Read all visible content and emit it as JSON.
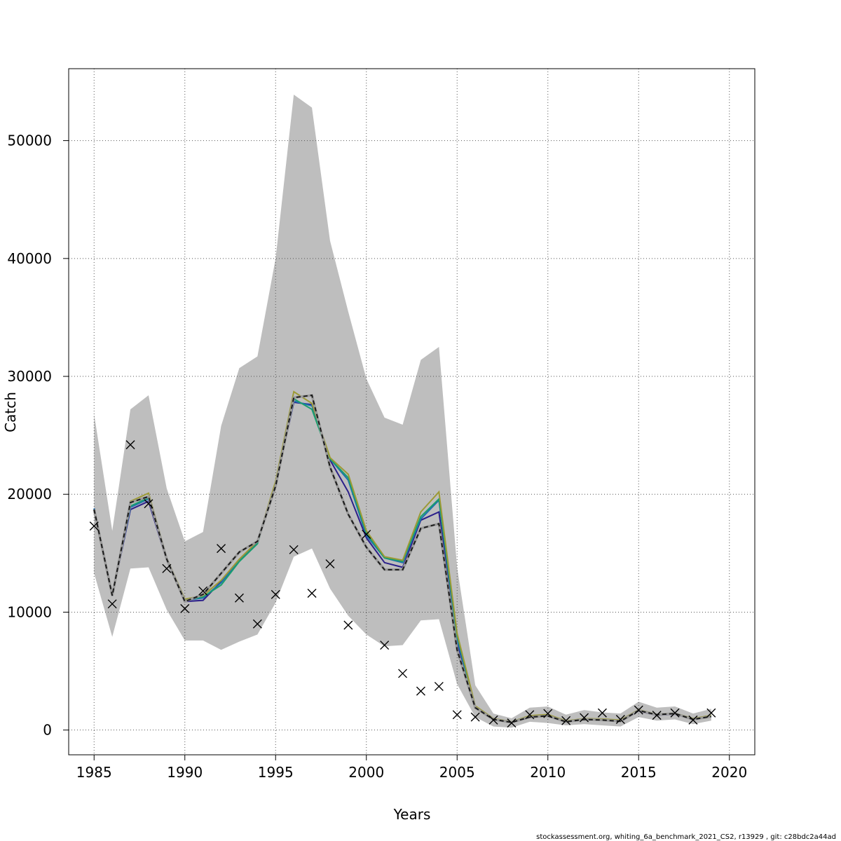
{
  "footer": "stockassessment.org, whiting_6a_benchmark_2021_CS2, r13929 , git: c28bdc2a44ad",
  "chart_data": {
    "type": "line",
    "xlabel": "Years",
    "ylabel": "Catch",
    "xlim": [
      1983.6,
      2021.4
    ],
    "ylim": [
      -2100,
      56100
    ],
    "xticks": [
      1985,
      1990,
      1995,
      2000,
      2005,
      2010,
      2015,
      2020
    ],
    "yticks": [
      0,
      10000,
      20000,
      30000,
      40000,
      50000
    ],
    "grid": true,
    "years": [
      1985,
      1986,
      1987,
      1988,
      1989,
      1990,
      1991,
      1992,
      1993,
      1994,
      1995,
      1996,
      1997,
      1998,
      1999,
      2000,
      2001,
      2002,
      2003,
      2004,
      2005,
      2006,
      2007,
      2008,
      2009,
      2010,
      2011,
      2012,
      2013,
      2014,
      2015,
      2016,
      2017,
      2018,
      2019
    ],
    "band": {
      "color": "#bebebe",
      "upper": [
        26800,
        16900,
        27200,
        28400,
        20500,
        16000,
        16800,
        25800,
        30700,
        31700,
        40000,
        53900,
        52800,
        41500,
        35500,
        29800,
        26500,
        25900,
        31400,
        32500,
        13800,
        3800,
        1400,
        1000,
        1900,
        2000,
        1300,
        1700,
        1500,
        1400,
        2400,
        1900,
        2000,
        1400,
        1800
      ],
      "lower": [
        13300,
        7900,
        13700,
        13800,
        10200,
        7600,
        7600,
        6800,
        7500,
        8100,
        10800,
        14700,
        15400,
        12000,
        9700,
        8100,
        7100,
        7200,
        9300,
        9400,
        3900,
        1100,
        300,
        200,
        700,
        600,
        400,
        500,
        400,
        300,
        1100,
        800,
        900,
        500,
        800
      ]
    },
    "observations": [
      17300,
      10700,
      24200,
      19200,
      13700,
      10300,
      11800,
      15400,
      11200,
      9000,
      11500,
      15300,
      11600,
      14100,
      8900,
      16600,
      7200,
      4800,
      3300,
      3700,
      1300,
      1100,
      850,
      600,
      1300,
      1400,
      800,
      1050,
      1450,
      900,
      1700,
      1250,
      1450,
      850,
      1450
    ],
    "series": [
      {
        "color": "#2b1f8a",
        "dashed": false,
        "values": [
          18800,
          11400,
          18700,
          19400,
          14400,
          10900,
          11000,
          12600,
          14400,
          15900,
          20800,
          27800,
          27600,
          22900,
          20200,
          16300,
          14200,
          13800,
          17800,
          18500,
          7400,
          1900,
          900,
          650,
          1100,
          1200,
          700,
          900,
          850,
          750,
          1600,
          1250,
          1350,
          900,
          1150
        ]
      },
      {
        "color": "#1e6fb0",
        "dashed": false,
        "values": [
          18800,
          11400,
          18900,
          19600,
          14500,
          11000,
          11200,
          12500,
          14400,
          15900,
          20900,
          27900,
          27500,
          23000,
          21200,
          16500,
          14600,
          14200,
          17900,
          19500,
          7700,
          1950,
          920,
          670,
          1150,
          1250,
          730,
          930,
          900,
          800,
          1650,
          1300,
          1400,
          950,
          1200
        ]
      },
      {
        "color": "#1a9e6e",
        "dashed": false,
        "values": [
          18700,
          11500,
          19000,
          19700,
          14500,
          11000,
          11300,
          12300,
          14300,
          15800,
          21000,
          28100,
          27200,
          23000,
          21400,
          16700,
          14600,
          14300,
          18100,
          19600,
          8000,
          2000,
          950,
          690,
          1200,
          1300,
          760,
          950,
          920,
          820,
          1700,
          1320,
          1420,
          960,
          1220
        ]
      },
      {
        "color": "#9c9a35",
        "dashed": false,
        "values": [
          18600,
          11500,
          19400,
          20100,
          14600,
          11100,
          11400,
          12700,
          14500,
          16000,
          21100,
          28700,
          27700,
          23100,
          21700,
          16900,
          14700,
          14400,
          18500,
          20200,
          8200,
          2050,
          980,
          700,
          1220,
          1320,
          780,
          970,
          940,
          840,
          1720,
          1340,
          1440,
          980,
          1240
        ]
      },
      {
        "color": "#1a1a1a",
        "dashed": true,
        "values": [
          18700,
          11400,
          19300,
          19800,
          14500,
          10900,
          11500,
          13300,
          15100,
          16000,
          20700,
          28200,
          28400,
          22300,
          18300,
          15500,
          13600,
          13600,
          17100,
          17500,
          6800,
          1900,
          900,
          650,
          1100,
          1200,
          700,
          900,
          850,
          750,
          1650,
          1300,
          1400,
          900,
          1150
        ]
      }
    ]
  }
}
